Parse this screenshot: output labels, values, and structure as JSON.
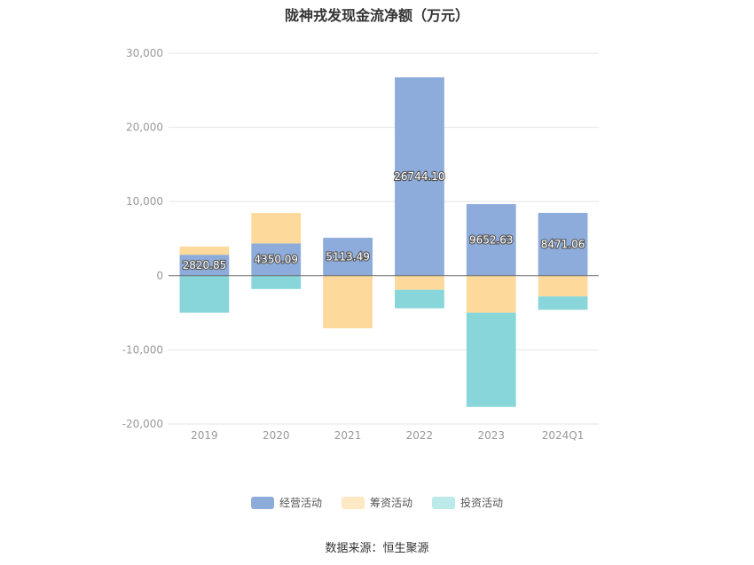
{
  "chart_data": {
    "type": "bar",
    "stacked": true,
    "title": "陇神戎发现金流净额（万元）",
    "categories": [
      "2019",
      "2020",
      "2021",
      "2022",
      "2023",
      "2024Q1"
    ],
    "ylim": [
      -20000,
      30000
    ],
    "yticks": [
      30000,
      20000,
      10000,
      0,
      -10000,
      -20000
    ],
    "ytick_labels": [
      "30,000",
      "20,000",
      "10,000",
      "0",
      "-10,000",
      "-20,000"
    ],
    "grid": true,
    "legend_position": "bottom",
    "series": [
      {
        "name": "经营活动",
        "color": "#8eacdb",
        "values": [
          2820.85,
          4350.09,
          5113.49,
          26744.1,
          9652.63,
          8471.06
        ],
        "labels": [
          "2820.85",
          "4350.09",
          "5113.49",
          "26744.10",
          "9652.63",
          "8471.06"
        ]
      },
      {
        "name": "筹资活动",
        "color": "#fdd99b",
        "values": [
          1100,
          4100,
          -7100,
          -1900,
          -5000,
          -2800
        ]
      },
      {
        "name": "投资活动",
        "color": "#88d6d9",
        "values": [
          -5000,
          -1800,
          0,
          -2500,
          -12700,
          -1800
        ]
      }
    ]
  },
  "legend_colors": {
    "op": "#8eacdb",
    "fin": "#fee9c4",
    "inv": "#bce9ea"
  },
  "source": "数据来源：恒生聚源"
}
